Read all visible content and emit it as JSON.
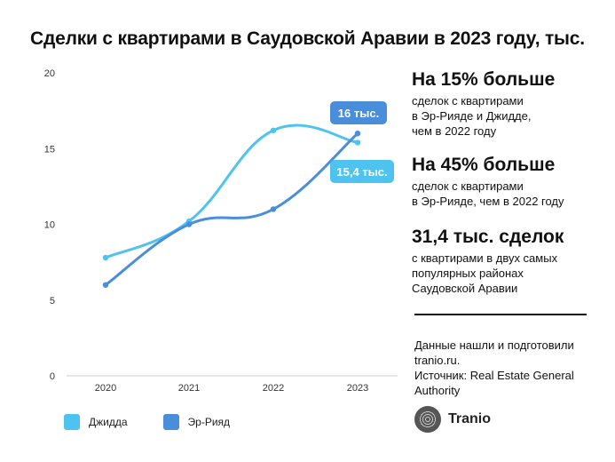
{
  "title": "Сделки с квартирами в Саудовской Аравии в 2023 году, тыс.",
  "chart_data": {
    "type": "line",
    "x": [
      "2020",
      "2021",
      "2022",
      "2023"
    ],
    "yticks": [
      "0",
      "5",
      "10",
      "15",
      "20"
    ],
    "ylim": [
      0,
      20
    ],
    "grid": false,
    "series": [
      {
        "name": "Джидда",
        "values": [
          7.8,
          10.2,
          16.2,
          15.4
        ],
        "color": "#4fc3ef"
      },
      {
        "name": "Эр-Рияд",
        "values": [
          6.0,
          10.0,
          11.0,
          16.0
        ],
        "color": "#4a8ddb"
      }
    ],
    "annotations": [
      {
        "text": "16 тыс.",
        "series": "Эр-Рияд",
        "color": "#4a8ddb"
      },
      {
        "text": "15,4 тыс.",
        "series": "Джидда",
        "color": "#4fc3ef"
      }
    ],
    "legend_position": "bottom-left"
  },
  "stats": [
    {
      "headline": "На 15% больше",
      "text": [
        "сделок с квартирами",
        "в Эр-Рияде и Джидде,",
        "чем в 2022 году"
      ]
    },
    {
      "headline": "На 45% больше",
      "text": [
        "сделок с квартирами",
        "в Эр-Рияде, чем в 2022 году"
      ]
    },
    {
      "headline": "31,4 тыс. сделок",
      "text": [
        "с квартирами в двух самых",
        "популярных районах",
        "Саудовской Аравии"
      ]
    }
  ],
  "note": [
    "Данные нашли и подготовили",
    "tranio.ru.",
    "Источник: Real Estate General",
    "Authority"
  ],
  "logo_text": "Tranio"
}
